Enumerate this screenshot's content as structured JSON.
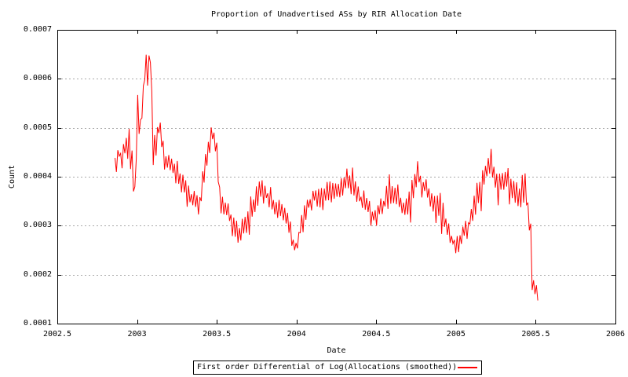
{
  "chart_data": {
    "type": "line",
    "title": "Proportion of Unadvertised ASs by RIR Allocation Date",
    "xlabel": "Date",
    "ylabel": "Count",
    "xlim": [
      2002.5,
      2006
    ],
    "ylim": [
      0.0001,
      0.0007
    ],
    "x_ticks": [
      {
        "v": 2002.5,
        "label": "2002.5"
      },
      {
        "v": 2003,
        "label": "2003"
      },
      {
        "v": 2003.5,
        "label": "2003.5"
      },
      {
        "v": 2004,
        "label": "2004"
      },
      {
        "v": 2004.5,
        "label": "2004.5"
      },
      {
        "v": 2005,
        "label": "2005"
      },
      {
        "v": 2005.5,
        "label": "2005.5"
      },
      {
        "v": 2006,
        "label": "2006"
      }
    ],
    "y_ticks": [
      {
        "v": 0.0001,
        "label": "0.0001"
      },
      {
        "v": 0.0002,
        "label": "0.0002"
      },
      {
        "v": 0.0003,
        "label": "0.0003"
      },
      {
        "v": 0.0004,
        "label": "0.0004"
      },
      {
        "v": 0.0005,
        "label": "0.0005"
      },
      {
        "v": 0.0006,
        "label": "0.0006"
      },
      {
        "v": 0.0007,
        "label": "0.0007"
      }
    ],
    "grid": {
      "horizontal": true,
      "vertical": false,
      "style": "dashed",
      "color": "#a8a8a8"
    },
    "axis_color": "#000000",
    "legend": {
      "boxed": true,
      "position": "below-plot-center",
      "entries": [
        {
          "label": "First order Differential of Log(Allocations (smoothed))",
          "color": "#ff0000"
        }
      ]
    },
    "series": [
      {
        "name": "First order Differential of Log(Allocations (smoothed))",
        "color": "#ff0000",
        "line_width": 1,
        "x_start": 2002.862,
        "x_end": 2005.513,
        "trend_points": [
          [
            2002.862,
            0.00042
          ],
          [
            2002.875,
            0.00044
          ],
          [
            2002.888,
            0.000455
          ],
          [
            2002.9,
            0.000415
          ],
          [
            2002.915,
            0.000445
          ],
          [
            2002.93,
            0.000465
          ],
          [
            2002.945,
            0.000435
          ],
          [
            2002.958,
            0.00046
          ],
          [
            2002.97,
            0.000425
          ],
          [
            2002.985,
            0.00033
          ],
          [
            2002.995,
            0.000445
          ],
          [
            2003.005,
            0.000565
          ],
          [
            2003.015,
            0.00048
          ],
          [
            2003.03,
            0.000535
          ],
          [
            2003.045,
            0.0006
          ],
          [
            2003.058,
            0.00063
          ],
          [
            2003.068,
            0.000595
          ],
          [
            2003.08,
            0.000668
          ],
          [
            2003.09,
            0.00059
          ],
          [
            2003.1,
            0.000448
          ],
          [
            2003.12,
            0.00047
          ],
          [
            2003.14,
            0.000508
          ],
          [
            2003.16,
            0.000452
          ],
          [
            2003.18,
            0.000425
          ],
          [
            2003.21,
            0.000428
          ],
          [
            2003.24,
            0.000412
          ],
          [
            2003.27,
            0.000395
          ],
          [
            2003.3,
            0.000372
          ],
          [
            2003.33,
            0.000358
          ],
          [
            2003.36,
            0.000352
          ],
          [
            2003.39,
            0.000346
          ],
          [
            2003.41,
            0.000382
          ],
          [
            2003.43,
            0.000428
          ],
          [
            2003.45,
            0.000465
          ],
          [
            2003.47,
            0.0005
          ],
          [
            2003.485,
            0.000478
          ],
          [
            2003.5,
            0.000458
          ],
          [
            2003.515,
            0.00037
          ],
          [
            2003.53,
            0.000345
          ],
          [
            2003.56,
            0.000335
          ],
          [
            2003.59,
            0.00031
          ],
          [
            2003.62,
            0.00029
          ],
          [
            2003.65,
            0.000286
          ],
          [
            2003.68,
            0.000296
          ],
          [
            2003.71,
            0.000308
          ],
          [
            2003.74,
            0.00035
          ],
          [
            2003.77,
            0.000375
          ],
          [
            2003.8,
            0.00037
          ],
          [
            2003.83,
            0.000356
          ],
          [
            2003.86,
            0.000342
          ],
          [
            2003.89,
            0.00033
          ],
          [
            2003.92,
            0.000326
          ],
          [
            2003.95,
            0.000306
          ],
          [
            2003.98,
            0.000262
          ],
          [
            2004.0,
            0.000248
          ],
          [
            2004.02,
            0.000292
          ],
          [
            2004.05,
            0.000322
          ],
          [
            2004.08,
            0.000346
          ],
          [
            2004.11,
            0.000356
          ],
          [
            2004.14,
            0.000366
          ],
          [
            2004.17,
            0.000356
          ],
          [
            2004.2,
            0.000372
          ],
          [
            2004.23,
            0.000376
          ],
          [
            2004.26,
            0.00037
          ],
          [
            2004.29,
            0.000382
          ],
          [
            2004.32,
            0.0004
          ],
          [
            2004.35,
            0.000386
          ],
          [
            2004.38,
            0.000362
          ],
          [
            2004.41,
            0.00035
          ],
          [
            2004.44,
            0.000346
          ],
          [
            2004.47,
            0.000322
          ],
          [
            2004.5,
            0.00032
          ],
          [
            2004.53,
            0.000336
          ],
          [
            2004.56,
            0.000352
          ],
          [
            2004.59,
            0.000366
          ],
          [
            2004.62,
            0.00037
          ],
          [
            2004.65,
            0.00035
          ],
          [
            2004.68,
            0.000332
          ],
          [
            2004.71,
            0.000346
          ],
          [
            2004.74,
            0.000392
          ],
          [
            2004.76,
            0.000408
          ],
          [
            2004.78,
            0.000382
          ],
          [
            2004.81,
            0.00038
          ],
          [
            2004.84,
            0.000362
          ],
          [
            2004.87,
            0.000342
          ],
          [
            2004.9,
            0.000332
          ],
          [
            2004.93,
            0.000316
          ],
          [
            2004.96,
            0.000282
          ],
          [
            2004.99,
            0.000262
          ],
          [
            2005.02,
            0.000272
          ],
          [
            2005.05,
            0.000286
          ],
          [
            2005.08,
            0.000302
          ],
          [
            2005.11,
            0.000332
          ],
          [
            2005.14,
            0.000372
          ],
          [
            2005.17,
            0.0004
          ],
          [
            2005.2,
            0.00042
          ],
          [
            2005.23,
            0.000406
          ],
          [
            2005.26,
            0.00039
          ],
          [
            2005.29,
            0.000382
          ],
          [
            2005.32,
            0.000396
          ],
          [
            2005.35,
            0.000372
          ],
          [
            2005.38,
            0.000362
          ],
          [
            2005.41,
            0.000356
          ],
          [
            2005.44,
            0.00035
          ],
          [
            2005.46,
            0.000332
          ],
          [
            2005.468,
            0.0003
          ],
          [
            2005.476,
            0.000185
          ],
          [
            2005.484,
            0.000165
          ],
          [
            2005.492,
            0.000172
          ],
          [
            2005.5,
            0.000158
          ],
          [
            2005.513,
            0.000165
          ]
        ],
        "noise": {
          "type": "alternating-zigzag",
          "base_amplitude": 1.6e-05,
          "min_factor": 0.3,
          "variation": 1.4,
          "spike_probability": 0.08,
          "spike_multiplier": 2.2,
          "sample_count": 300,
          "seed": 42
        },
        "clip_y": [
          0.000145,
          0.00068
        ]
      }
    ]
  }
}
